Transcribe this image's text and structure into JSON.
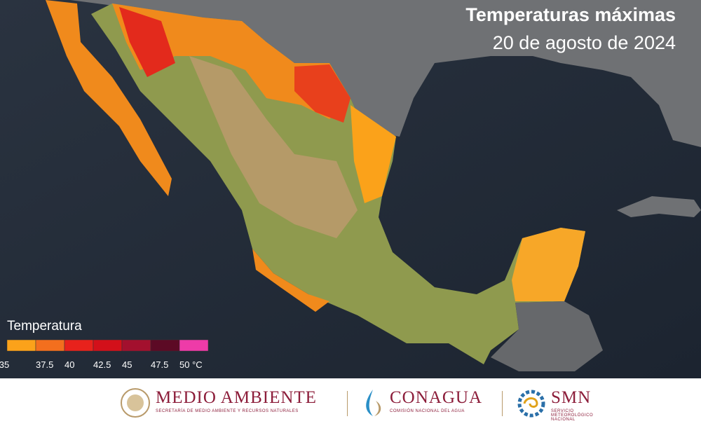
{
  "header": {
    "title": "Temperaturas máximas",
    "subtitle": "20 de agosto de 2024"
  },
  "legend": {
    "title": "Temperatura",
    "colors": [
      "#fba21a",
      "#f36f1e",
      "#e8221c",
      "#d3101a",
      "#a3102e",
      "#5c0a25",
      "#ee3ba8"
    ],
    "labels": [
      "35",
      "37.5",
      "40",
      "42.5",
      "45",
      "47.5",
      "50 °C"
    ]
  },
  "footer": {
    "agency1": "MEDIO AMBIENTE",
    "agency1_sub": "SECRETARÍA DE MEDIO AMBIENTE Y RECURSOS NATURALES",
    "agency2": "CONAGUA",
    "agency2_sub": "COMISIÓN NACIONAL DEL AGUA",
    "agency3": "SMN",
    "agency3_sub": "SERVICIO METEOROLÓGICO NACIONAL"
  }
}
